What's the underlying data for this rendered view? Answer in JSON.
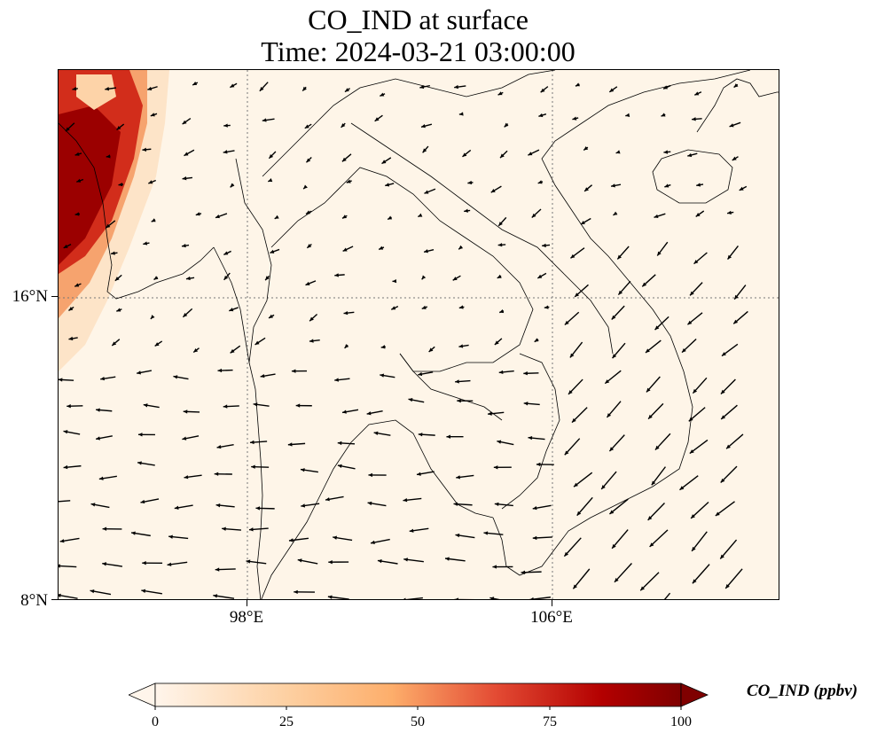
{
  "title_line1": "CO_IND at surface",
  "title_line2": "Time: 2024-03-21 03:00:00",
  "axes": {
    "lat_ticks": [
      "16°N",
      "8°N"
    ],
    "lon_ticks": [
      "98°E",
      "106°E"
    ]
  },
  "colorbar": {
    "label": "CO_IND (ppbv)",
    "ticks": [
      "0",
      "25",
      "50",
      "75",
      "100"
    ],
    "min": 0,
    "max": 100,
    "extend": "both",
    "colormap": [
      "#fff5eb",
      "#fdd0a2",
      "#fdae6b",
      "#e34a33",
      "#b30000",
      "#7f0000"
    ]
  },
  "map": {
    "background_color": "#fef5e8",
    "gridlines": "dotted",
    "features": [
      "coastlines",
      "country borders",
      "wind vectors"
    ]
  }
}
